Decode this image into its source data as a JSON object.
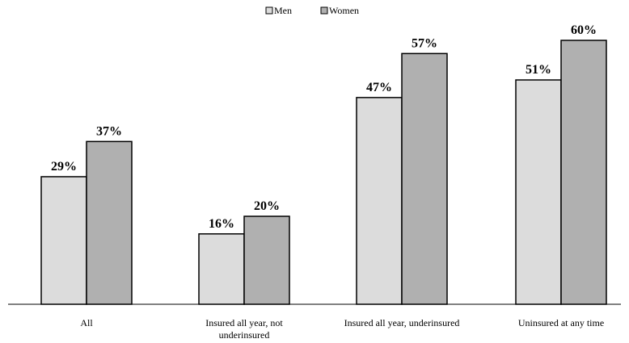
{
  "chart_data": {
    "type": "bar",
    "title": "",
    "xlabel": "",
    "ylabel": "",
    "legend_position": "top-center",
    "grid": false,
    "ylim": [
      0,
      65
    ],
    "categories": [
      [
        "All"
      ],
      [
        "Insured all year, not",
        "underinsured"
      ],
      [
        "Insured all year, underinsured"
      ],
      [
        "Uninsured at any time"
      ]
    ],
    "series": [
      {
        "name": "Men",
        "values": [
          29,
          16,
          47,
          51
        ],
        "labels": [
          "29%",
          "16%",
          "47%",
          "51%"
        ],
        "color": "#dcdcdc"
      },
      {
        "name": "Women",
        "values": [
          37,
          20,
          57,
          60
        ],
        "labels": [
          "37%",
          "20%",
          "57%",
          "60%"
        ],
        "color": "#b0b0b0"
      }
    ]
  }
}
